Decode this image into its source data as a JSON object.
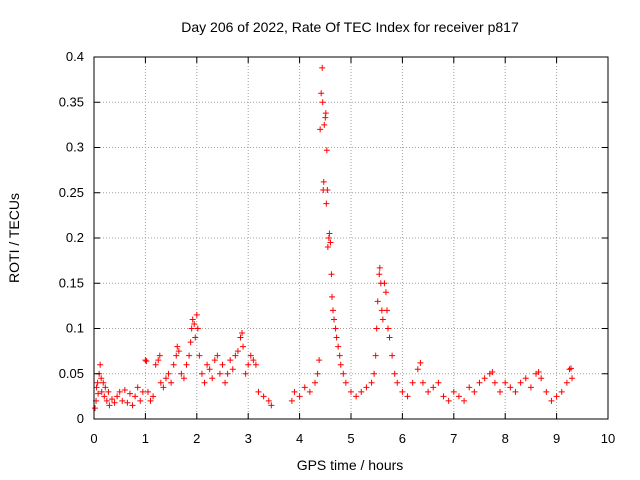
{
  "chart_data": {
    "type": "scatter",
    "title": "Day 206 of 2022, Rate Of TEC Index for receiver p817",
    "xlabel": "GPS time / hours",
    "ylabel": "ROTI / TECUs",
    "xlim": [
      0,
      10
    ],
    "ylim": [
      0,
      0.4
    ],
    "xticks": [
      0,
      1,
      2,
      3,
      4,
      5,
      6,
      7,
      8,
      9,
      10
    ],
    "yticks": [
      0,
      0.05,
      0.1,
      0.15,
      0.2,
      0.25,
      0.3,
      0.35,
      0.4
    ],
    "ytick_labels": [
      "0",
      "0.05",
      "0.1",
      "0.15",
      "0.2",
      "0.25",
      "0.3",
      "0.35",
      "0.4"
    ],
    "grid": true,
    "marker": "+",
    "color": "#ff0000",
    "series": [
      {
        "name": "ROTI",
        "points": [
          [
            0.02,
            0.012
          ],
          [
            0.04,
            0.02
          ],
          [
            0.05,
            0.035
          ],
          [
            0.07,
            0.04
          ],
          [
            0.08,
            0.028
          ],
          [
            0.1,
            0.05
          ],
          [
            0.12,
            0.06
          ],
          [
            0.14,
            0.045
          ],
          [
            0.15,
            0.03
          ],
          [
            0.18,
            0.04
          ],
          [
            0.2,
            0.025
          ],
          [
            0.22,
            0.035
          ],
          [
            0.25,
            0.02
          ],
          [
            0.28,
            0.03
          ],
          [
            0.3,
            0.015
          ],
          [
            0.35,
            0.022
          ],
          [
            0.4,
            0.018
          ],
          [
            0.45,
            0.025
          ],
          [
            0.5,
            0.03
          ],
          [
            0.55,
            0.02
          ],
          [
            0.6,
            0.032
          ],
          [
            0.65,
            0.018
          ],
          [
            0.7,
            0.028
          ],
          [
            0.75,
            0.015
          ],
          [
            0.8,
            0.025
          ],
          [
            0.85,
            0.035
          ],
          [
            0.9,
            0.02
          ],
          [
            0.95,
            0.03
          ],
          [
            1.0,
            0.065
          ],
          [
            1.02,
            0.064
          ],
          [
            1.05,
            0.03
          ],
          [
            1.1,
            0.02
          ],
          [
            1.15,
            0.025
          ],
          [
            1.2,
            0.06
          ],
          [
            1.25,
            0.065
          ],
          [
            1.28,
            0.07
          ],
          [
            1.3,
            0.04
          ],
          [
            1.35,
            0.035
          ],
          [
            1.4,
            0.045
          ],
          [
            1.45,
            0.05
          ],
          [
            1.5,
            0.04
          ],
          [
            1.55,
            0.06
          ],
          [
            1.6,
            0.07
          ],
          [
            1.62,
            0.08
          ],
          [
            1.65,
            0.075
          ],
          [
            1.7,
            0.05
          ],
          [
            1.75,
            0.045
          ],
          [
            1.8,
            0.06
          ],
          [
            1.85,
            0.07
          ],
          [
            1.88,
            0.085
          ],
          [
            1.9,
            0.1
          ],
          [
            1.92,
            0.11
          ],
          [
            1.95,
            0.105
          ],
          [
            1.97,
            0.09
          ],
          [
            2.0,
            0.115
          ],
          [
            2.02,
            0.1
          ],
          [
            2.05,
            0.07
          ],
          [
            2.1,
            0.05
          ],
          [
            2.15,
            0.04
          ],
          [
            2.2,
            0.06
          ],
          [
            2.25,
            0.055
          ],
          [
            2.3,
            0.045
          ],
          [
            2.35,
            0.065
          ],
          [
            2.4,
            0.07
          ],
          [
            2.45,
            0.05
          ],
          [
            2.5,
            0.06
          ],
          [
            2.55,
            0.04
          ],
          [
            2.6,
            0.05
          ],
          [
            2.65,
            0.065
          ],
          [
            2.7,
            0.055
          ],
          [
            2.75,
            0.07
          ],
          [
            2.8,
            0.075
          ],
          [
            2.85,
            0.09
          ],
          [
            2.88,
            0.095
          ],
          [
            2.9,
            0.08
          ],
          [
            2.95,
            0.05
          ],
          [
            3.0,
            0.06
          ],
          [
            3.05,
            0.07
          ],
          [
            3.1,
            0.065
          ],
          [
            3.15,
            0.06
          ],
          [
            3.2,
            0.03
          ],
          [
            3.3,
            0.025
          ],
          [
            3.4,
            0.02
          ],
          [
            3.45,
            0.015
          ],
          [
            3.85,
            0.02
          ],
          [
            3.9,
            0.03
          ],
          [
            4.0,
            0.025
          ],
          [
            4.1,
            0.035
          ],
          [
            4.2,
            0.03
          ],
          [
            4.3,
            0.04
          ],
          [
            4.35,
            0.05
          ],
          [
            4.38,
            0.065
          ],
          [
            4.4,
            0.32
          ],
          [
            4.42,
            0.36
          ],
          [
            4.44,
            0.388
          ],
          [
            4.45,
            0.35
          ],
          [
            4.46,
            0.253
          ],
          [
            4.47,
            0.262
          ],
          [
            4.48,
            0.325
          ],
          [
            4.5,
            0.333
          ],
          [
            4.51,
            0.338
          ],
          [
            4.52,
            0.238
          ],
          [
            4.53,
            0.297
          ],
          [
            4.54,
            0.253
          ],
          [
            4.55,
            0.19
          ],
          [
            4.57,
            0.2
          ],
          [
            4.58,
            0.205
          ],
          [
            4.6,
            0.195
          ],
          [
            4.62,
            0.16
          ],
          [
            4.63,
            0.135
          ],
          [
            4.65,
            0.12
          ],
          [
            4.67,
            0.11
          ],
          [
            4.7,
            0.1
          ],
          [
            4.72,
            0.09
          ],
          [
            4.75,
            0.08
          ],
          [
            4.78,
            0.07
          ],
          [
            4.8,
            0.06
          ],
          [
            4.85,
            0.05
          ],
          [
            4.9,
            0.04
          ],
          [
            5.0,
            0.03
          ],
          [
            5.1,
            0.025
          ],
          [
            5.2,
            0.03
          ],
          [
            5.3,
            0.035
          ],
          [
            5.4,
            0.04
          ],
          [
            5.45,
            0.05
          ],
          [
            5.48,
            0.07
          ],
          [
            5.5,
            0.1
          ],
          [
            5.52,
            0.13
          ],
          [
            5.55,
            0.16
          ],
          [
            5.56,
            0.167
          ],
          [
            5.58,
            0.15
          ],
          [
            5.6,
            0.12
          ],
          [
            5.62,
            0.11
          ],
          [
            5.65,
            0.15
          ],
          [
            5.68,
            0.14
          ],
          [
            5.7,
            0.12
          ],
          [
            5.72,
            0.1
          ],
          [
            5.75,
            0.09
          ],
          [
            5.8,
            0.07
          ],
          [
            5.85,
            0.05
          ],
          [
            5.9,
            0.04
          ],
          [
            6.0,
            0.03
          ],
          [
            6.1,
            0.025
          ],
          [
            6.2,
            0.04
          ],
          [
            6.3,
            0.055
          ],
          [
            6.35,
            0.062
          ],
          [
            6.4,
            0.04
          ],
          [
            6.5,
            0.03
          ],
          [
            6.6,
            0.035
          ],
          [
            6.7,
            0.04
          ],
          [
            6.8,
            0.025
          ],
          [
            6.9,
            0.02
          ],
          [
            7.0,
            0.03
          ],
          [
            7.1,
            0.025
          ],
          [
            7.2,
            0.02
          ],
          [
            7.3,
            0.035
          ],
          [
            7.4,
            0.03
          ],
          [
            7.5,
            0.04
          ],
          [
            7.6,
            0.045
          ],
          [
            7.7,
            0.05
          ],
          [
            7.75,
            0.052
          ],
          [
            7.8,
            0.04
          ],
          [
            7.9,
            0.03
          ],
          [
            8.0,
            0.04
          ],
          [
            8.1,
            0.035
          ],
          [
            8.2,
            0.03
          ],
          [
            8.3,
            0.04
          ],
          [
            8.4,
            0.045
          ],
          [
            8.5,
            0.035
          ],
          [
            8.6,
            0.05
          ],
          [
            8.65,
            0.052
          ],
          [
            8.7,
            0.045
          ],
          [
            8.8,
            0.03
          ],
          [
            8.9,
            0.02
          ],
          [
            9.0,
            0.025
          ],
          [
            9.1,
            0.03
          ],
          [
            9.2,
            0.04
          ],
          [
            9.25,
            0.055
          ],
          [
            9.28,
            0.056
          ],
          [
            9.3,
            0.045
          ]
        ]
      }
    ]
  }
}
